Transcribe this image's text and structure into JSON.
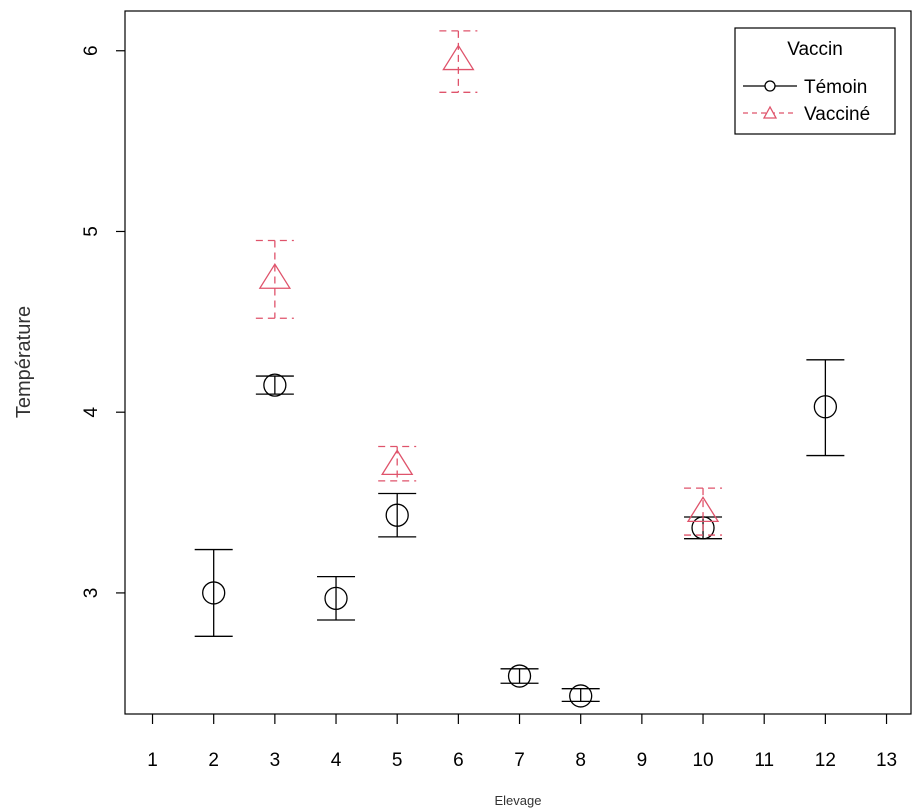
{
  "chart_data": {
    "type": "scatter",
    "xlabel": "Elevage",
    "ylabel": "Température",
    "xlim": [
      0.55,
      13.4
    ],
    "ylim": [
      2.33,
      6.22
    ],
    "x_ticks": [
      1,
      2,
      3,
      4,
      5,
      6,
      7,
      8,
      9,
      10,
      11,
      12,
      13
    ],
    "y_ticks": [
      3,
      4,
      5,
      6
    ],
    "grid": false,
    "legend": {
      "title": "Vaccin",
      "position": "top-right"
    },
    "series": [
      {
        "name": "Témoin",
        "color": "#000000",
        "marker": "circle",
        "line": "solid",
        "points": [
          {
            "x": 2,
            "y": 3.0,
            "lo": 2.76,
            "hi": 3.24
          },
          {
            "x": 3,
            "y": 4.15,
            "lo": 4.1,
            "hi": 4.2
          },
          {
            "x": 4,
            "y": 2.97,
            "lo": 2.85,
            "hi": 3.09
          },
          {
            "x": 5,
            "y": 3.43,
            "lo": 3.31,
            "hi": 3.55
          },
          {
            "x": 7,
            "y": 2.54,
            "lo": 2.5,
            "hi": 2.58
          },
          {
            "x": 8,
            "y": 2.43,
            "lo": 2.4,
            "hi": 2.47
          },
          {
            "x": 10,
            "y": 3.36,
            "lo": 3.3,
            "hi": 3.42
          },
          {
            "x": 12,
            "y": 4.03,
            "lo": 3.76,
            "hi": 4.29
          }
        ]
      },
      {
        "name": "Vacciné",
        "color": "#df536b",
        "marker": "triangle",
        "line": "dashed",
        "points": [
          {
            "x": 3,
            "y": 4.74,
            "lo": 4.52,
            "hi": 4.95
          },
          {
            "x": 5,
            "y": 3.71,
            "lo": 3.62,
            "hi": 3.81
          },
          {
            "x": 6,
            "y": 5.95,
            "lo": 5.77,
            "hi": 6.11
          },
          {
            "x": 10,
            "y": 3.45,
            "lo": 3.32,
            "hi": 3.58
          }
        ]
      }
    ]
  }
}
